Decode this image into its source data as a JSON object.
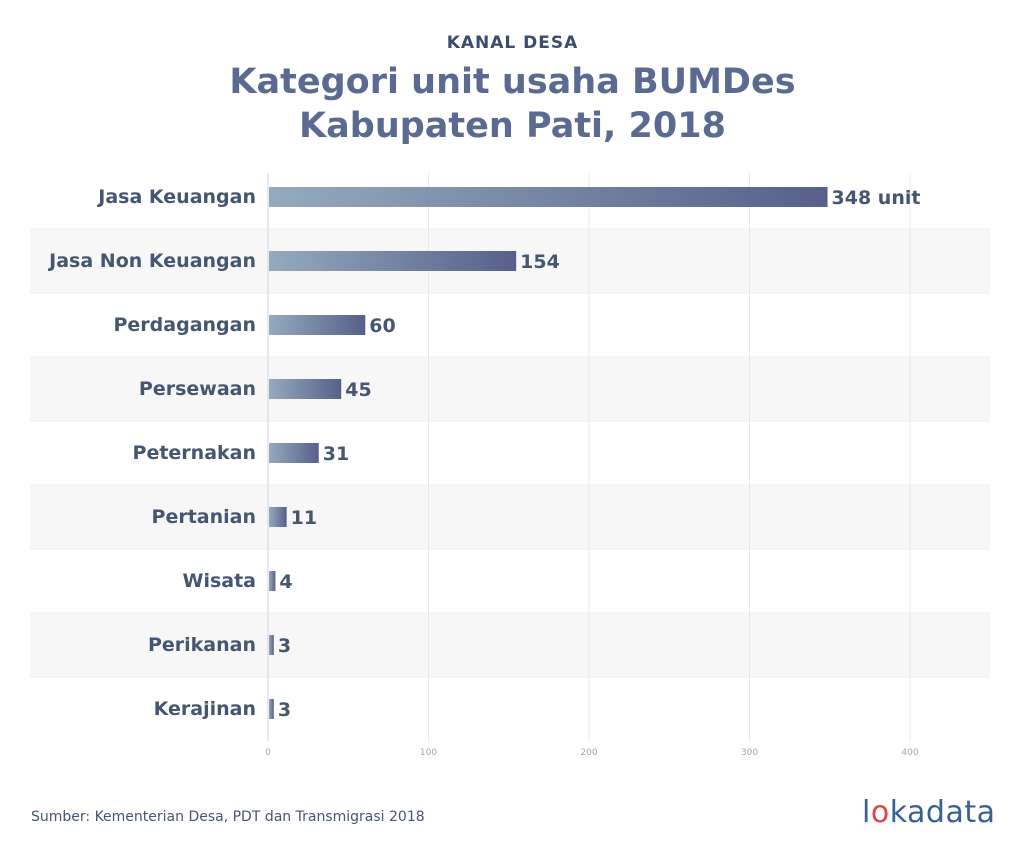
{
  "header": {
    "kicker": "KANAL DESA",
    "title_line1": "Kategori unit usaha BUMDes",
    "title_line2": "Kabupaten Pati, 2018"
  },
  "footer": {
    "source": "Sumber: Kementerian Desa, PDT dan Transmigrasi 2018",
    "logo_left": "l",
    "logo_accent": "o",
    "logo_right": "kadata"
  },
  "chart_data": {
    "type": "bar",
    "orientation": "horizontal",
    "categories": [
      "Jasa Keuangan",
      "Jasa Non Keuangan",
      "Perdagangan",
      "Persewaan",
      "Peternakan",
      "Pertanian",
      "Wisata",
      "Perikanan",
      "Kerajinan"
    ],
    "values": [
      348,
      154,
      60,
      45,
      31,
      11,
      4,
      3,
      3
    ],
    "data_labels": [
      "348 unit",
      "154",
      "60",
      "45",
      "31",
      "11",
      "4",
      "3",
      "3"
    ],
    "xticks": [
      "0",
      "100",
      "200",
      "300",
      "400"
    ],
    "xlim": [
      0,
      400
    ],
    "grid": true,
    "colors": {
      "bar_start": "#94aabd",
      "bar_end": "#56608a",
      "label": "#45566e",
      "grid": "#e8e8ec",
      "band": "#f7f7f8"
    }
  }
}
